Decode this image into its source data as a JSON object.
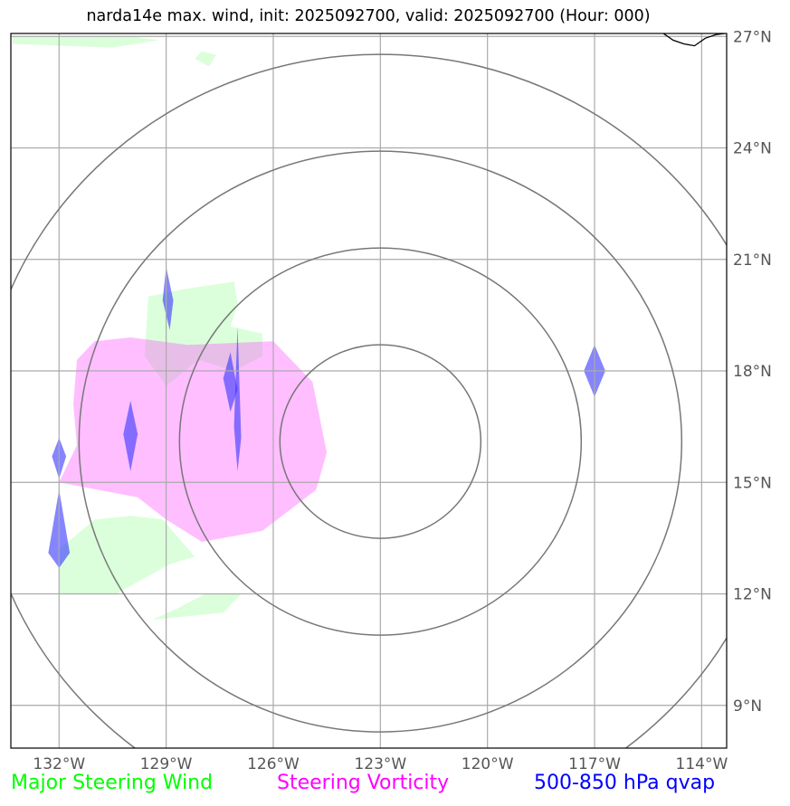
{
  "title": "narda14e max. wind, init: 2025092700, valid: 2025092700 (Hour: 000)",
  "map": {
    "lon_range": [
      -133.35,
      -113.3
    ],
    "lat_range": [
      7.85,
      27.08
    ],
    "lon_ticks": [
      {
        "value": -132,
        "label": "132°W"
      },
      {
        "value": -129,
        "label": "129°W"
      },
      {
        "value": -126,
        "label": "126°W"
      },
      {
        "value": -123,
        "label": "123°W"
      },
      {
        "value": -120,
        "label": "120°W"
      },
      {
        "value": -117,
        "label": "117°W"
      },
      {
        "value": -114,
        "label": "114°W"
      }
    ],
    "lat_ticks": [
      {
        "value": 27,
        "label": "27°N"
      },
      {
        "value": 24,
        "label": "24°N"
      },
      {
        "value": 21,
        "label": "21°N"
      },
      {
        "value": 18,
        "label": "18°N"
      },
      {
        "value": 15,
        "label": "15°N"
      },
      {
        "value": 12,
        "label": "12°N"
      },
      {
        "value": 9,
        "label": "9°N"
      }
    ],
    "grid": true,
    "range_rings": {
      "center": [
        -123,
        16.1
      ],
      "count": 4,
      "color": "#777777"
    },
    "layers": {
      "major_steering_wind": {
        "color": "#ccffcc",
        "polygons": [
          [
            [
              -133.3,
              27.0
            ],
            [
              -130.0,
              27.0
            ],
            [
              -129.2,
              26.9
            ],
            [
              -130.5,
              26.7
            ],
            [
              -133.3,
              26.8
            ]
          ],
          [
            [
              -128.0,
              26.6
            ],
            [
              -127.6,
              26.5
            ],
            [
              -127.8,
              26.2
            ],
            [
              -128.2,
              26.4
            ]
          ],
          [
            [
              -128.5,
              20.2
            ],
            [
              -127.1,
              20.4
            ],
            [
              -127.0,
              19.8
            ],
            [
              -127.2,
              19.2
            ],
            [
              -126.3,
              19.0
            ],
            [
              -126.3,
              18.4
            ],
            [
              -127.1,
              18.0
            ],
            [
              -128.1,
              18.3
            ],
            [
              -129.0,
              17.6
            ],
            [
              -129.6,
              18.4
            ],
            [
              -129.5,
              20.0
            ]
          ],
          [
            [
              -132.0,
              12.0
            ],
            [
              -132.0,
              13.2
            ],
            [
              -131.0,
              14.0
            ],
            [
              -130.0,
              14.1
            ],
            [
              -129.1,
              14.0
            ],
            [
              -128.2,
              13.0
            ],
            [
              -128.9,
              12.8
            ],
            [
              -130.4,
              12.0
            ]
          ],
          [
            [
              -129.4,
              11.3
            ],
            [
              -127.4,
              11.5
            ],
            [
              -126.9,
              12.0
            ],
            [
              -127.9,
              12.0
            ],
            [
              -128.7,
              11.6
            ]
          ]
        ]
      },
      "steering_vorticity": {
        "color": "#ff44ff",
        "polygons": [
          [
            [
              -130.0,
              18.9
            ],
            [
              -128.4,
              18.7
            ],
            [
              -126.0,
              18.8
            ],
            [
              -124.9,
              17.7
            ],
            [
              -124.5,
              15.8
            ],
            [
              -124.8,
              14.8
            ],
            [
              -126.3,
              13.7
            ],
            [
              -128.0,
              13.4
            ],
            [
              -129.0,
              14.0
            ],
            [
              -129.8,
              14.6
            ],
            [
              -132.0,
              15.0
            ],
            [
              -131.5,
              16.0
            ],
            [
              -131.6,
              17.1
            ],
            [
              -131.5,
              18.3
            ],
            [
              -131.0,
              18.8
            ]
          ]
        ]
      },
      "qvap_500_850": {
        "color": "#3333ff",
        "polygons": [
          [
            [
              -129.0,
              20.8
            ],
            [
              -128.8,
              19.9
            ],
            [
              -128.9,
              19.1
            ],
            [
              -129.1,
              19.9
            ]
          ],
          [
            [
              -127.2,
              18.5
            ],
            [
              -127.0,
              17.5
            ],
            [
              -127.2,
              16.9
            ],
            [
              -127.4,
              17.8
            ]
          ],
          [
            [
              -130.0,
              17.2
            ],
            [
              -129.8,
              16.3
            ],
            [
              -130.0,
              15.3
            ],
            [
              -130.2,
              16.3
            ]
          ],
          [
            [
              -127.0,
              19.2
            ],
            [
              -126.9,
              16.2
            ],
            [
              -127.0,
              15.3
            ],
            [
              -127.1,
              16.5
            ]
          ],
          [
            [
              -132.0,
              16.2
            ],
            [
              -131.8,
              15.7
            ],
            [
              -132.0,
              15.1
            ],
            [
              -132.2,
              15.7
            ]
          ],
          [
            [
              -132.0,
              14.8
            ],
            [
              -131.7,
              13.1
            ],
            [
              -132.0,
              12.7
            ],
            [
              -132.3,
              13.1
            ]
          ],
          [
            [
              -117.0,
              18.7
            ],
            [
              -116.7,
              18.0
            ],
            [
              -117.0,
              17.3
            ],
            [
              -117.3,
              18.0
            ]
          ]
        ]
      }
    },
    "coastline": [
      [
        -113.2,
        27.1
      ],
      [
        -113.6,
        27.05
      ],
      [
        -113.9,
        26.95
      ],
      [
        -114.2,
        26.75
      ],
      [
        -114.5,
        26.8
      ],
      [
        -114.8,
        26.9
      ],
      [
        -115.1,
        27.1
      ]
    ]
  },
  "legend": {
    "wind": {
      "label": "Major Steering Wind",
      "color": "#00ff00"
    },
    "vorticity": {
      "label": "Steering Vorticity",
      "color": "#ff00ff"
    },
    "qvap": {
      "label": "500-850 hPa qvap",
      "color": "#0000ff"
    }
  }
}
